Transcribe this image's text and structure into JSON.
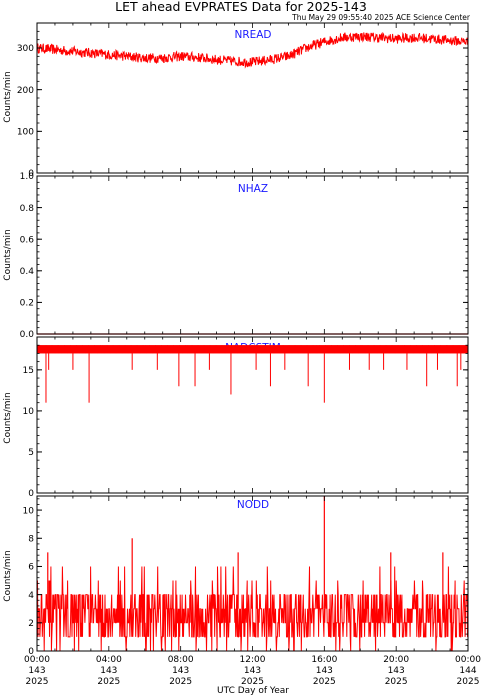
{
  "title": "LET ahead EVPRATES Data for 2025-143",
  "timestamp": "Thu May 29 09:55:40 2025 ACE Science Center",
  "colors": {
    "data": "#ff0000",
    "panel_label": "#1a1aff",
    "axes": "#000000"
  },
  "x_axis": {
    "label": "UTC Day of Year",
    "ticks": [
      {
        "time": "00:00",
        "day": "143",
        "year": "2025"
      },
      {
        "time": "04:00",
        "day": "143",
        "year": "2025"
      },
      {
        "time": "08:00",
        "day": "143",
        "year": "2025"
      },
      {
        "time": "12:00",
        "day": "143",
        "year": "2025"
      },
      {
        "time": "16:00",
        "day": "143",
        "year": "2025"
      },
      {
        "time": "20:00",
        "day": "143",
        "year": "2025"
      },
      {
        "time": "00:00",
        "day": "144",
        "year": "2025"
      }
    ]
  },
  "chart_data": [
    {
      "type": "line",
      "name": "NREAD",
      "ylabel": "Counts/min",
      "ylim": [
        0,
        360
      ],
      "yticks": [
        0,
        100,
        200,
        300
      ],
      "x_hours": [
        0,
        1,
        2,
        3,
        4,
        5,
        6,
        7,
        8,
        9,
        10,
        11,
        12,
        13,
        14,
        15,
        16,
        17,
        18,
        19,
        20,
        21,
        22,
        23,
        24
      ],
      "values": [
        300,
        296,
        292,
        288,
        284,
        280,
        276,
        276,
        280,
        277,
        272,
        268,
        266,
        272,
        280,
        300,
        315,
        325,
        328,
        325,
        322,
        325,
        322,
        318,
        315
      ],
      "noise": 12
    },
    {
      "type": "line",
      "name": "NHAZ",
      "ylabel": "Counts/min",
      "ylim": [
        0,
        1
      ],
      "yticks": [
        0.0,
        0.2,
        0.4,
        0.6,
        0.8,
        1.0
      ],
      "x_hours": [
        0,
        24
      ],
      "values": [
        0,
        0
      ]
    },
    {
      "type": "line",
      "name": "NADCSTIM",
      "ylabel": "Counts/min",
      "ylim": [
        0,
        19
      ],
      "yticks": [
        0,
        5,
        10,
        15
      ],
      "baseline": [
        17,
        18
      ],
      "dips": [
        {
          "hour": 0.5,
          "value": 11
        },
        {
          "hour": 0.65,
          "value": 15
        },
        {
          "hour": 2.9,
          "value": 11
        },
        {
          "hour": 2.0,
          "value": 15
        },
        {
          "hour": 5.3,
          "value": 15
        },
        {
          "hour": 6.7,
          "value": 15
        },
        {
          "hour": 7.9,
          "value": 13
        },
        {
          "hour": 8.8,
          "value": 13
        },
        {
          "hour": 9.6,
          "value": 15
        },
        {
          "hour": 10.8,
          "value": 12
        },
        {
          "hour": 12.2,
          "value": 15
        },
        {
          "hour": 13.0,
          "value": 13
        },
        {
          "hour": 13.8,
          "value": 15
        },
        {
          "hour": 15.1,
          "value": 13
        },
        {
          "hour": 16.0,
          "value": 11
        },
        {
          "hour": 17.4,
          "value": 15
        },
        {
          "hour": 18.5,
          "value": 15
        },
        {
          "hour": 19.3,
          "value": 15
        },
        {
          "hour": 20.6,
          "value": 15
        },
        {
          "hour": 21.7,
          "value": 13
        },
        {
          "hour": 22.3,
          "value": 15
        },
        {
          "hour": 23.4,
          "value": 13
        },
        {
          "hour": 23.6,
          "value": 15
        }
      ]
    },
    {
      "type": "line",
      "name": "NODD",
      "ylabel": "Counts/min",
      "ylim": [
        0,
        11
      ],
      "yticks": [
        0,
        2,
        4,
        6,
        8,
        10
      ],
      "typical_range": [
        1,
        4
      ],
      "spikes": [
        {
          "hour": 5.3,
          "value": 8
        },
        {
          "hour": 16.0,
          "value": 11
        },
        {
          "hour": 11.2,
          "value": 7
        },
        {
          "hour": 22.6,
          "value": 7
        },
        {
          "hour": 0.6,
          "value": 7
        },
        {
          "hour": 19.7,
          "value": 7
        }
      ]
    }
  ]
}
